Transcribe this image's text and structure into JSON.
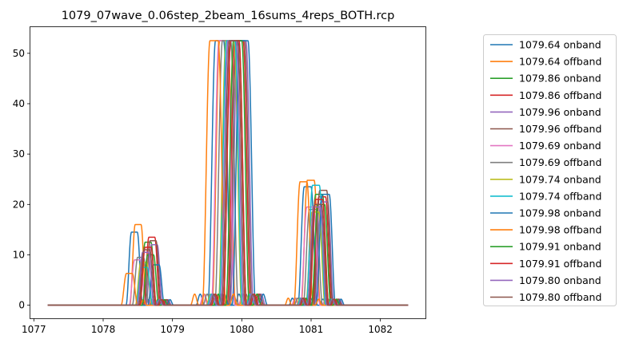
{
  "chart_data": {
    "type": "line",
    "title": "1079_07wave_0.06step_2beam_16sums_4reps_BOTH.rcp",
    "xlabel": "",
    "ylabel": "",
    "xlim": [
      1076.95,
      1082.65
    ],
    "ylim": [
      -2.6,
      55.2
    ],
    "x_ticks": [
      1077,
      1078,
      1079,
      1080,
      1081,
      1082
    ],
    "y_ticks": [
      0,
      10,
      20,
      30,
      40,
      50
    ],
    "x_range": [
      1077.2,
      1082.4
    ],
    "grid": false,
    "legend_position": "outside-right",
    "series": [
      {
        "name": "1079.64 onband",
        "color": "#1f77b4",
        "offset": 0.0,
        "h2": 14.5,
        "h3": 23.5
      },
      {
        "name": "1079.64 offband",
        "color": "#ff7f0e",
        "offset": 0.06,
        "h2": 16.0,
        "h3": 24.8
      },
      {
        "name": "1079.86 onband",
        "color": "#2ca02c",
        "offset": 0.22,
        "h2": 12.5,
        "h3": 22.0
      },
      {
        "name": "1079.86 offband",
        "color": "#d62728",
        "offset": 0.28,
        "h2": 13.5,
        "h3": 21.5
      },
      {
        "name": "1079.96 onband",
        "color": "#9467bd",
        "offset": 0.32,
        "h2": 12.0,
        "h3": 20.5
      },
      {
        "name": "1079.96 offband",
        "color": "#8c564b",
        "offset": 0.3,
        "h2": 12.8,
        "h3": 22.8
      },
      {
        "name": "1079.69 onband",
        "color": "#e377c2",
        "offset": 0.05,
        "h2": 9.0,
        "h3": 19.5
      },
      {
        "name": "1079.69 offband",
        "color": "#7f7f7f",
        "offset": 0.1,
        "h2": 9.5,
        "h3": 19.0
      },
      {
        "name": "1079.74 onband",
        "color": "#bcbd22",
        "offset": 0.15,
        "h2": 8.5,
        "h3": 18.5
      },
      {
        "name": "1079.74 offband",
        "color": "#17becf",
        "offset": 0.16,
        "h2": 7.5,
        "h3": 23.8
      },
      {
        "name": "1079.98 onband",
        "color": "#1f77b4",
        "offset": 0.35,
        "h2": 8.0,
        "h3": 22.0
      },
      {
        "name": "1079.98 offband",
        "color": "#ff7f0e",
        "offset": -0.08,
        "h2": 6.3,
        "h3": 24.5
      },
      {
        "name": "1079.91 onband",
        "color": "#2ca02c",
        "offset": 0.26,
        "h2": 10.0,
        "h3": 20.0
      },
      {
        "name": "1079.91 offband",
        "color": "#d62728",
        "offset": 0.22,
        "h2": 11.5,
        "h3": 21.0
      },
      {
        "name": "1079.80 onband",
        "color": "#9467bd",
        "offset": 0.18,
        "h2": 10.5,
        "h3": 19.5
      },
      {
        "name": "1079.80 offband",
        "color": "#8c564b",
        "offset": 0.2,
        "h2": 11.0,
        "h3": 20.0
      }
    ],
    "peaks": {
      "main": {
        "center": 1079.68,
        "width": 0.17,
        "height": 52.5
      },
      "left": {
        "center": 1078.45,
        "width": 0.12
      },
      "right": {
        "center": 1080.95,
        "width": 0.14
      }
    }
  }
}
